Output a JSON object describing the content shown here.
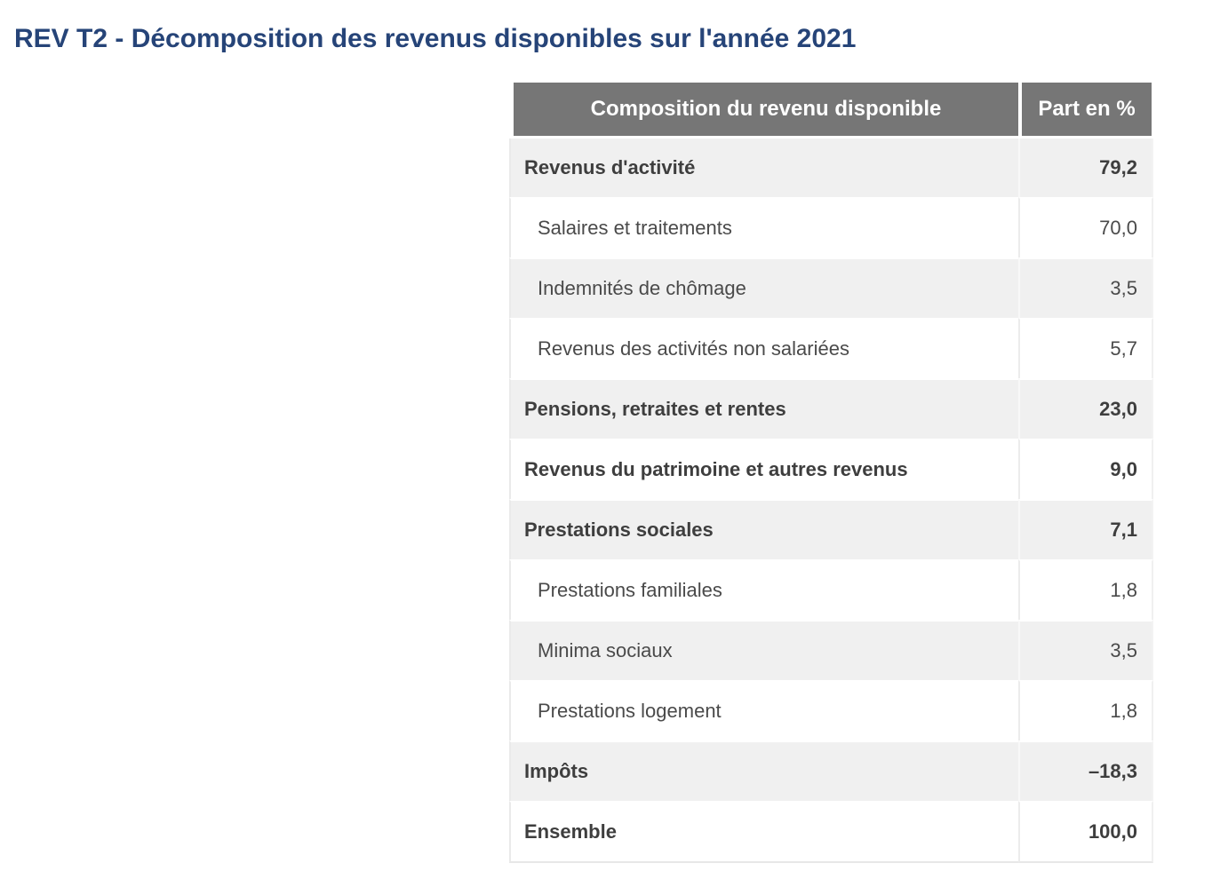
{
  "page": {
    "title": "REV T2 - Décomposition des revenus disponibles sur l'année 2021"
  },
  "table": {
    "columns": [
      "Composition du revenu disponible",
      "Part en %"
    ],
    "rows": [
      {
        "label": "Revenus d'activité",
        "value": "79,2",
        "bold": true,
        "indent": false
      },
      {
        "label": "Salaires et traitements",
        "value": "70,0",
        "bold": false,
        "indent": true
      },
      {
        "label": "Indemnités de chômage",
        "value": "3,5",
        "bold": false,
        "indent": true
      },
      {
        "label": "Revenus des activités non salariées",
        "value": "5,7",
        "bold": false,
        "indent": true
      },
      {
        "label": "Pensions, retraites et rentes",
        "value": "23,0",
        "bold": true,
        "indent": false
      },
      {
        "label": "Revenus du patrimoine et autres revenus",
        "value": "9,0",
        "bold": true,
        "indent": false
      },
      {
        "label": "Prestations sociales",
        "value": "7,1",
        "bold": true,
        "indent": false
      },
      {
        "label": "Prestations familiales",
        "value": "1,8",
        "bold": false,
        "indent": true
      },
      {
        "label": "Minima sociaux",
        "value": "3,5",
        "bold": false,
        "indent": true
      },
      {
        "label": "Prestations logement",
        "value": "1,8",
        "bold": false,
        "indent": true
      },
      {
        "label": "Impôts",
        "value": "–18,3",
        "bold": true,
        "indent": false
      },
      {
        "label": "Ensemble",
        "value": "100,0",
        "bold": true,
        "indent": false
      }
    ]
  },
  "chart_data": {
    "type": "table",
    "title": "REV T2 - Décomposition des revenus disponibles sur l'année 2021",
    "columns": [
      "Composition du revenu disponible",
      "Part en %"
    ],
    "categories": [
      "Revenus d'activité",
      "Salaires et traitements",
      "Indemnités de chômage",
      "Revenus des activités non salariées",
      "Pensions, retraites et rentes",
      "Revenus du patrimoine et autres revenus",
      "Prestations sociales",
      "Prestations familiales",
      "Minima sociaux",
      "Prestations logement",
      "Impôts",
      "Ensemble"
    ],
    "values": [
      79.2,
      70.0,
      3.5,
      5.7,
      23.0,
      9.0,
      7.1,
      1.8,
      3.5,
      1.8,
      -18.3,
      100.0
    ]
  },
  "colors": {
    "title": "#264478",
    "header_bg": "#767676",
    "header_text": "#ffffff",
    "stripe_bg": "#f0f0f0",
    "row_bg": "#ffffff",
    "body_text": "#4a4a4a"
  }
}
